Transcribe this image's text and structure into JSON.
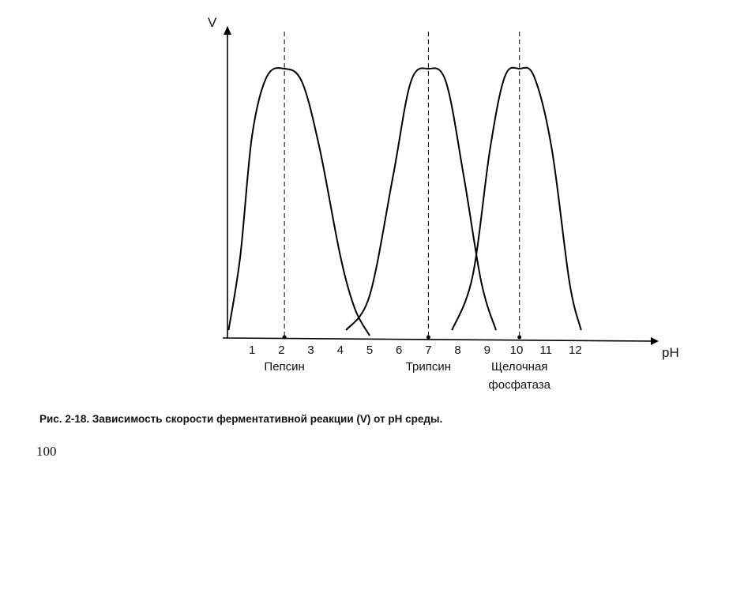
{
  "chart_data": {
    "type": "line",
    "xlabel": "pH",
    "ylabel": "V",
    "xlim": [
      0,
      13.6
    ],
    "ylim": [
      0,
      1
    ],
    "grid": false,
    "x_ticks": [
      1,
      2,
      3,
      4,
      5,
      6,
      7,
      8,
      9,
      10,
      11,
      12
    ],
    "series": [
      {
        "name": "Пепсин",
        "peak_ph": 2.1,
        "range": [
          0.2,
          5.0
        ],
        "points": [
          [
            0.2,
            0.02
          ],
          [
            0.6,
            0.3
          ],
          [
            1.0,
            0.75
          ],
          [
            1.5,
            0.97
          ],
          [
            2.1,
            1.0
          ],
          [
            2.7,
            0.95
          ],
          [
            3.3,
            0.7
          ],
          [
            4.0,
            0.3
          ],
          [
            4.5,
            0.1
          ],
          [
            5.0,
            0.0
          ]
        ]
      },
      {
        "name": "Трипсин",
        "peak_ph": 7.0,
        "range": [
          4.2,
          9.3
        ],
        "points": [
          [
            4.2,
            0.02
          ],
          [
            5.0,
            0.15
          ],
          [
            5.8,
            0.6
          ],
          [
            6.4,
            0.95
          ],
          [
            7.0,
            1.0
          ],
          [
            7.6,
            0.95
          ],
          [
            8.2,
            0.6
          ],
          [
            8.8,
            0.2
          ],
          [
            9.3,
            0.02
          ]
        ]
      },
      {
        "name": "Щелочная фосфатаза",
        "peak_ph": 10.1,
        "range": [
          7.8,
          12.2
        ],
        "points": [
          [
            7.8,
            0.02
          ],
          [
            8.5,
            0.22
          ],
          [
            9.1,
            0.7
          ],
          [
            9.6,
            0.97
          ],
          [
            10.1,
            1.0
          ],
          [
            10.6,
            0.97
          ],
          [
            11.2,
            0.7
          ],
          [
            11.8,
            0.2
          ],
          [
            12.2,
            0.02
          ]
        ]
      }
    ],
    "series_labels": [
      {
        "lines": [
          "Пепсин"
        ],
        "ph": 2.1
      },
      {
        "lines": [
          "Трипсин"
        ],
        "ph": 7.0
      },
      {
        "lines": [
          "Щелочная",
          "фосфатаза"
        ],
        "ph": 10.1
      }
    ]
  },
  "caption": "Рис. 2-18. Зависимость скорости ферментативной реакции (V) от pH среды.",
  "page_number": "100"
}
